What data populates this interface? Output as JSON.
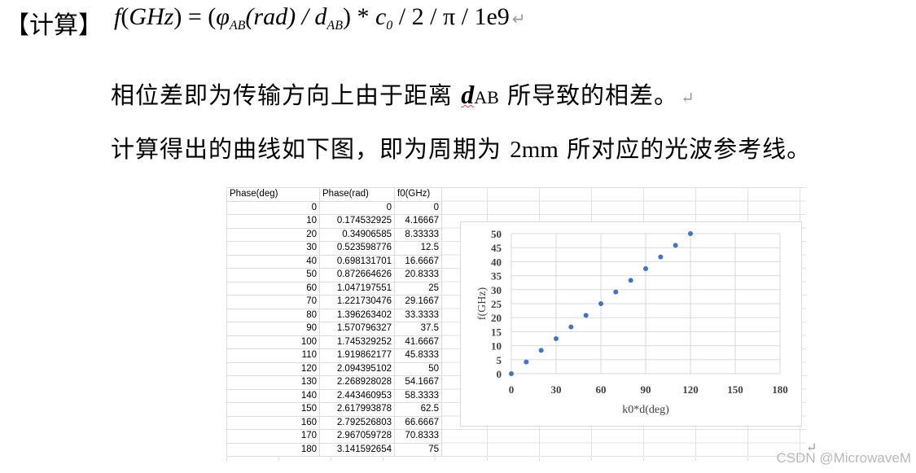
{
  "header": {
    "label": "【计算】",
    "formula": {
      "f": "f",
      "lparen": "(",
      "unit": "GHz",
      "eq_open": ") = (",
      "phi": "φ",
      "sub_ab": "AB",
      "rad": "(rad) / ",
      "d": "d",
      "sub_ab2": "AB",
      "close": ") * ",
      "c": "c",
      "sub0": "0",
      "tail": " / 2 / π / 1e9"
    },
    "return_mark": "↵"
  },
  "paragraph1": {
    "before": "相位差即为传输方向上由于距离 ",
    "d": "d",
    "sub": "AB",
    "after": " 所导致的相差。",
    "return_mark": "↵"
  },
  "paragraph2": {
    "before": "计算得出的曲线如下图，即为周期为 ",
    "value": "2mm",
    "after": " 所对应的光波参考线。"
  },
  "sheet": {
    "headers": [
      "Phase(deg)",
      "Phase(rad)",
      "f0(GHz)"
    ],
    "rows": [
      [
        "0",
        "0",
        "0"
      ],
      [
        "10",
        "0.174532925",
        "4.16667"
      ],
      [
        "20",
        "0.34906585",
        "8.33333"
      ],
      [
        "30",
        "0.523598776",
        "12.5"
      ],
      [
        "40",
        "0.698131701",
        "16.6667"
      ],
      [
        "50",
        "0.872664626",
        "20.8333"
      ],
      [
        "60",
        "1.047197551",
        "25"
      ],
      [
        "70",
        "1.221730476",
        "29.1667"
      ],
      [
        "80",
        "1.396263402",
        "33.3333"
      ],
      [
        "90",
        "1.570796327",
        "37.5"
      ],
      [
        "100",
        "1.745329252",
        "41.6667"
      ],
      [
        "110",
        "1.919862177",
        "45.8333"
      ],
      [
        "120",
        "2.094395102",
        "50"
      ],
      [
        "130",
        "2.268928028",
        "54.1667"
      ],
      [
        "140",
        "2.443460953",
        "58.3333"
      ],
      [
        "150",
        "2.617993878",
        "62.5"
      ],
      [
        "160",
        "2.792526803",
        "66.6667"
      ],
      [
        "170",
        "2.967059728",
        "70.8333"
      ],
      [
        "180",
        "3.141592654",
        "75"
      ]
    ]
  },
  "chart_data": {
    "type": "scatter",
    "title": "",
    "xlabel": "k0*d(deg)",
    "ylabel": "f(GHz)",
    "xlim": [
      0,
      180
    ],
    "ylim": [
      0,
      50
    ],
    "xticks": [
      "0",
      "30",
      "60",
      "90",
      "120",
      "150",
      "180"
    ],
    "yticks": [
      "0",
      "5",
      "10",
      "15",
      "20",
      "25",
      "30",
      "35",
      "40",
      "45",
      "50"
    ],
    "grid": true,
    "marker_color": "#4472c4",
    "x": [
      0,
      10,
      20,
      30,
      40,
      50,
      60,
      70,
      80,
      90,
      100,
      110,
      120
    ],
    "y": [
      0,
      4.16667,
      8.33333,
      12.5,
      16.6667,
      20.8333,
      25,
      29.1667,
      33.3333,
      37.5,
      41.6667,
      45.8333,
      50
    ]
  },
  "trailing_return_mark": "↵",
  "watermark": "CSDN @MicrowaveM"
}
